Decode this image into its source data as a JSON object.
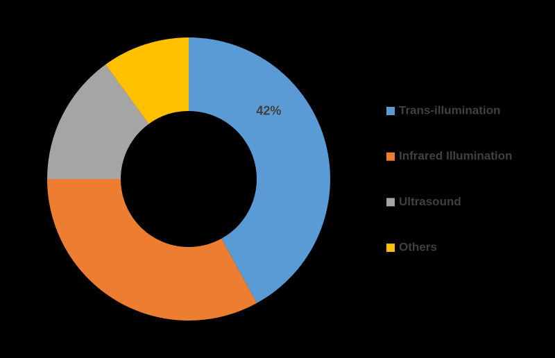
{
  "chart_data": {
    "type": "donut",
    "categories": [
      "Trans-illumination",
      "Infrared Illumination",
      "Ultrasound",
      "Others"
    ],
    "values": [
      42,
      33,
      15,
      10
    ],
    "value_labels": [
      "42%",
      null,
      null,
      null
    ],
    "colors": [
      "#5b9bd5",
      "#ed7d31",
      "#a5a5a5",
      "#ffc000"
    ],
    "legend": "right"
  }
}
